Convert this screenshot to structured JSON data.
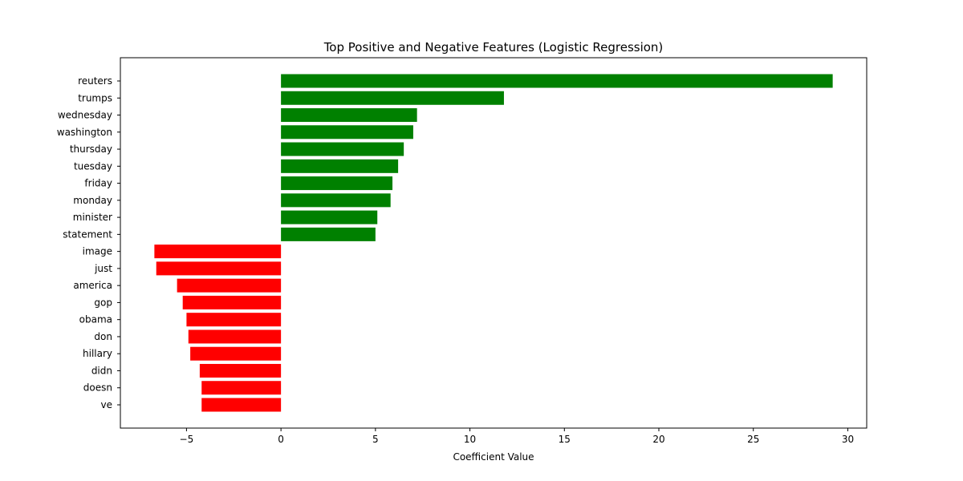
{
  "chart_data": {
    "type": "bar",
    "orientation": "horizontal",
    "title": "Top Positive and Negative Features (Logistic Regression)",
    "xlabel": "Coefficient Value",
    "ylabel": "",
    "xlim": [
      -8.5,
      31
    ],
    "xticks": [
      -5,
      0,
      5,
      10,
      15,
      20,
      25,
      30
    ],
    "xtick_labels": [
      "−5",
      "0",
      "5",
      "10",
      "15",
      "20",
      "25",
      "30"
    ],
    "grid": false,
    "legend": "none",
    "colors": {
      "positive": "#008000",
      "negative": "#ff0000"
    },
    "categories": [
      "reuters",
      "trumps",
      "wednesday",
      "washington",
      "thursday",
      "tuesday",
      "friday",
      "monday",
      "minister",
      "statement",
      "image",
      "just",
      "america",
      "gop",
      "obama",
      "don",
      "hillary",
      "didn",
      "doesn",
      "ve"
    ],
    "values": [
      29.2,
      11.8,
      7.2,
      7.0,
      6.5,
      6.2,
      5.9,
      5.8,
      5.1,
      5.0,
      -6.7,
      -6.6,
      -5.5,
      -5.2,
      -5.0,
      -4.9,
      -4.8,
      -4.3,
      -4.2,
      -4.2
    ]
  }
}
